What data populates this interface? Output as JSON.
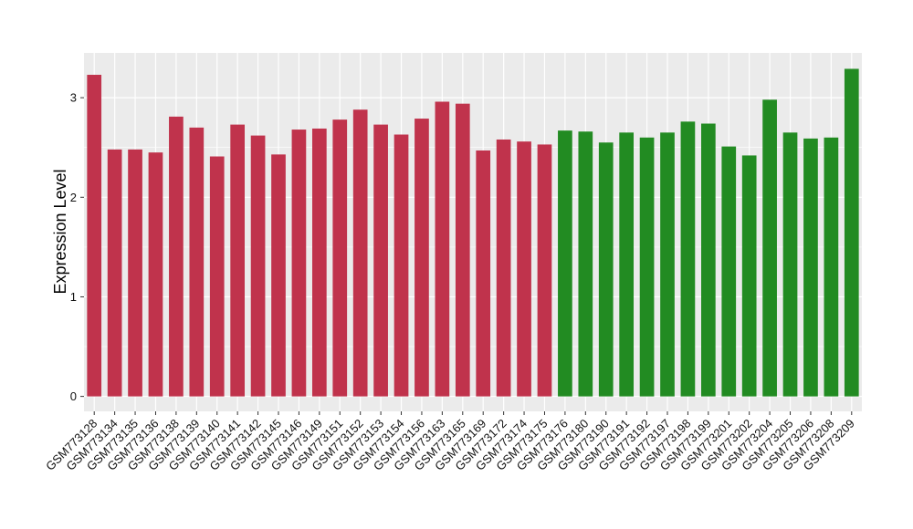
{
  "chart_data": {
    "type": "bar",
    "ylabel": "Expression Level",
    "xlabel": "",
    "ylim": [
      -0.15,
      3.45
    ],
    "yticks": [
      0,
      1,
      2,
      3
    ],
    "grid": true,
    "panel_background": "#ebebeb",
    "grid_color": "#ffffff",
    "colors": {
      "group1": "#c0334c",
      "group2": "#228b22"
    },
    "categories": [
      "GSM773128",
      "GSM773134",
      "GSM773135",
      "GSM773136",
      "GSM773138",
      "GSM773139",
      "GSM773140",
      "GSM773141",
      "GSM773142",
      "GSM773145",
      "GSM773146",
      "GSM773149",
      "GSM773151",
      "GSM773152",
      "GSM773153",
      "GSM773154",
      "GSM773156",
      "GSM773163",
      "GSM773165",
      "GSM773169",
      "GSM773172",
      "GSM773174",
      "GSM773175",
      "GSM773176",
      "GSM773180",
      "GSM773190",
      "GSM773191",
      "GSM773192",
      "GSM773197",
      "GSM773198",
      "GSM773199",
      "GSM773201",
      "GSM773202",
      "GSM773204",
      "GSM773205",
      "GSM773206",
      "GSM773208",
      "GSM773209"
    ],
    "values": [
      3.23,
      2.48,
      2.48,
      2.45,
      2.81,
      2.7,
      2.41,
      2.73,
      2.62,
      2.43,
      2.68,
      2.69,
      2.78,
      2.88,
      2.73,
      2.63,
      2.79,
      2.96,
      2.94,
      2.47,
      2.58,
      2.56,
      2.53,
      2.67,
      2.66,
      2.55,
      2.65,
      2.6,
      2.65,
      2.76,
      2.74,
      2.51,
      2.42,
      2.98,
      2.65,
      2.59,
      2.6,
      3.29
    ],
    "groups": [
      1,
      1,
      1,
      1,
      1,
      1,
      1,
      1,
      1,
      1,
      1,
      1,
      1,
      1,
      1,
      1,
      1,
      1,
      1,
      1,
      1,
      1,
      1,
      2,
      2,
      2,
      2,
      2,
      2,
      2,
      2,
      2,
      2,
      2,
      2,
      2,
      2,
      2
    ]
  }
}
